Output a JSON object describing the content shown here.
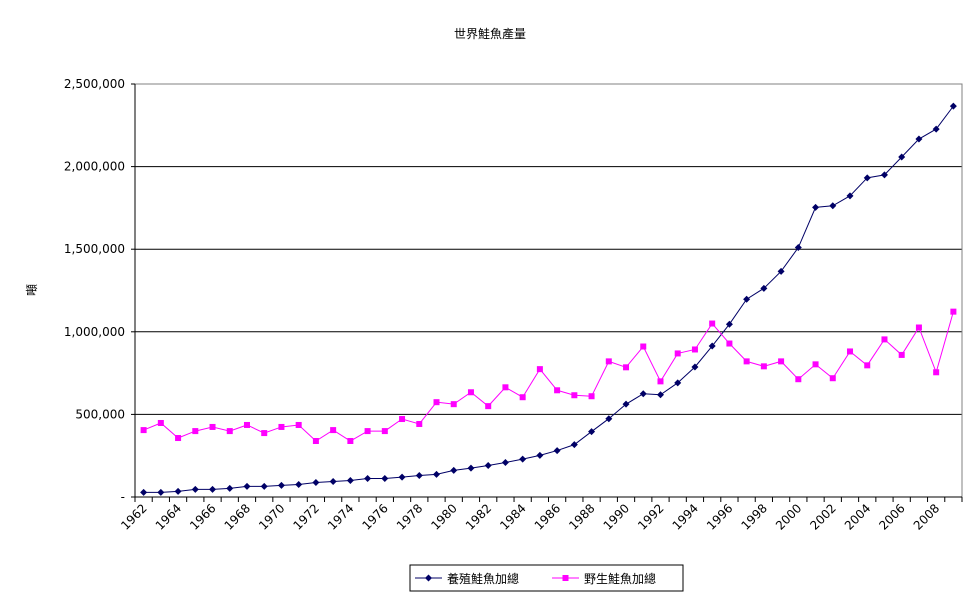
{
  "chart_data": {
    "type": "line",
    "title": "世界鮭魚產量",
    "xlabel": "",
    "ylabel": "噸",
    "ylim": [
      0,
      2500000
    ],
    "yticks": [
      0,
      500000,
      1000000,
      1500000,
      2000000,
      2500000
    ],
    "ytick_labels": [
      "-",
      "500,000",
      "1,000,000",
      "1,500,000",
      "2,000,000",
      "2,500,000"
    ],
    "grid": true,
    "legend_position": "bottom",
    "categories": [
      1962,
      1963,
      1964,
      1965,
      1966,
      1967,
      1968,
      1969,
      1970,
      1971,
      1972,
      1973,
      1974,
      1975,
      1976,
      1977,
      1978,
      1979,
      1980,
      1981,
      1982,
      1983,
      1984,
      1985,
      1986,
      1987,
      1988,
      1989,
      1990,
      1991,
      1992,
      1993,
      1994,
      1995,
      1996,
      1997,
      1998,
      1999,
      2000,
      2001,
      2002,
      2003,
      2004,
      2005,
      2006,
      2007,
      2008,
      2009
    ],
    "xtick_labels": [
      "1962",
      "1964",
      "1966",
      "1968",
      "1970",
      "1972",
      "1974",
      "1976",
      "1978",
      "1980",
      "1982",
      "1984",
      "1986",
      "1988",
      "1990",
      "1992",
      "1994",
      "1996",
      "1998",
      "2000",
      "2002",
      "2004",
      "2006",
      "2008"
    ],
    "series": [
      {
        "name": "養殖鮭魚加總",
        "color": "#000066",
        "marker": "diamond",
        "values": [
          28000,
          28000,
          34000,
          46000,
          46000,
          52000,
          64000,
          64000,
          70000,
          76000,
          88000,
          94000,
          100000,
          112000,
          112000,
          120000,
          130000,
          137000,
          161000,
          175000,
          191000,
          209000,
          229000,
          252000,
          281000,
          317000,
          396000,
          474000,
          562000,
          625000,
          619000,
          691000,
          787000,
          914000,
          1046000,
          1197000,
          1263000,
          1366000,
          1510000,
          1753000,
          1763000,
          1823000,
          1932000,
          1950000,
          2058000,
          2167000,
          2227000,
          2366000
        ]
      },
      {
        "name": "野生鮭魚加總",
        "color": "#FF00FF",
        "marker": "square",
        "values": [
          405000,
          448000,
          357000,
          399000,
          424000,
          399000,
          436000,
          387000,
          424000,
          436000,
          339000,
          405000,
          339000,
          399000,
          399000,
          472000,
          442000,
          574000,
          562000,
          634000,
          550000,
          664000,
          604000,
          774000,
          646000,
          616000,
          610000,
          821000,
          785000,
          911000,
          700000,
          869000,
          893000,
          1050000,
          929000,
          821000,
          791000,
          821000,
          713000,
          803000,
          719000,
          881000,
          797000,
          954000,
          860000,
          1026000,
          755000,
          1122000
        ]
      }
    ]
  }
}
